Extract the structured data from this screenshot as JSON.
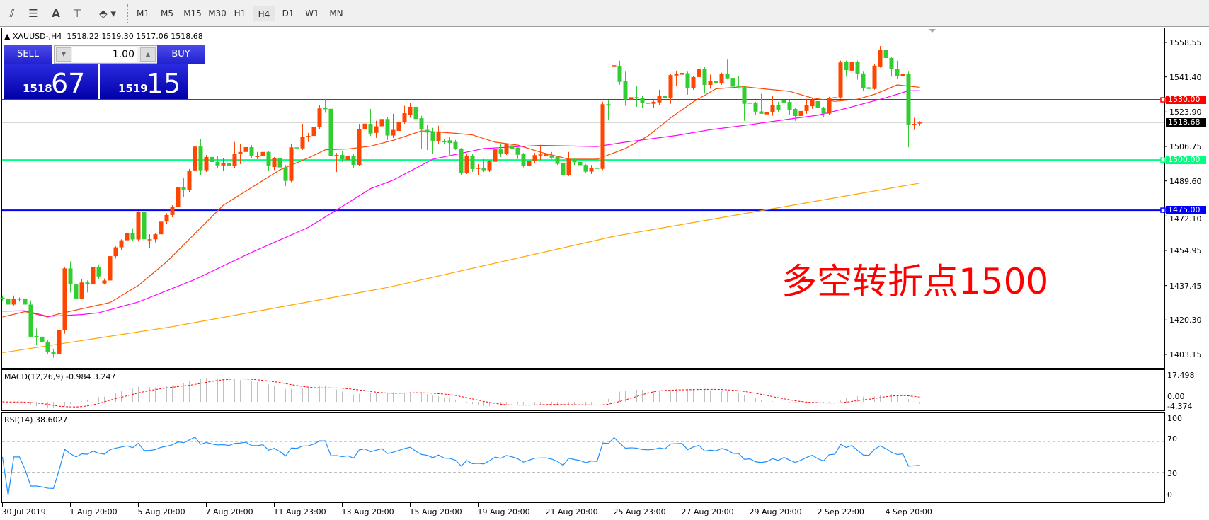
{
  "toolbar": {
    "icons": [
      "elliott-wave-icon",
      "fibonacci-icon",
      "text-icon",
      "text-label-icon",
      "arrows-icon"
    ],
    "timeframes": [
      "M1",
      "M5",
      "M15",
      "M30",
      "H1",
      "H4",
      "D1",
      "W1",
      "MN"
    ],
    "active_timeframe": "H4"
  },
  "header": {
    "symbol": "XAUUSD-,H4",
    "ohlc_text": "1518.22 1519.30 1517.06 1518.68"
  },
  "trade_panel": {
    "sell_label": "SELL",
    "buy_label": "BUY",
    "lot": "1.00",
    "sell_big": "1518",
    "sell_small": "67",
    "buy_big": "1519",
    "buy_small": "15",
    "color": "#1c1cd8"
  },
  "annotation": {
    "text": "多空转折点1500",
    "color": "#ff0000"
  },
  "macd": {
    "label": "MACD(12,26,9) -0.984 3.247",
    "ticks": [
      "17.498",
      "0.00",
      "-4.374"
    ],
    "range": [
      -4.374,
      17.498
    ]
  },
  "rsi": {
    "label": "RSI(14) 38.6027",
    "ticks": [
      "100",
      "70",
      "30",
      "0"
    ],
    "levels": [
      70,
      30
    ]
  },
  "chart_data": {
    "type": "candlestick",
    "symbol": "XAUUSD-",
    "timeframe": "H4",
    "ylim": [
      1403.15,
      1558.55
    ],
    "price_ticks": [
      "1558.55",
      "1541.40",
      "1523.90",
      "1506.75",
      "1489.60",
      "1472.10",
      "1454.95",
      "1437.45",
      "1420.30",
      "1403.15"
    ],
    "time_labels": [
      "30 Jul 2019",
      "1 Aug 20:00",
      "5 Aug 20:00",
      "7 Aug 20:00",
      "11 Aug 23:00",
      "13 Aug 20:00",
      "15 Aug 20:00",
      "19 Aug 20:00",
      "21 Aug 20:00",
      "25 Aug 23:00",
      "27 Aug 20:00",
      "29 Aug 20:00",
      "2 Sep 22:00",
      "4 Sep 20:00"
    ],
    "bars_per_time_label": 12,
    "colors": {
      "up": "#ff4500",
      "down": "#32cd32"
    },
    "horizontal_lines": [
      {
        "price": 1530.0,
        "label": "1530.00",
        "color": "#ff0000"
      },
      {
        "price": 1500.0,
        "label": "1500.00",
        "color": "#00ff7f"
      },
      {
        "price": 1475.0,
        "label": "1475.00",
        "color": "#0000ff"
      }
    ],
    "bid_line": {
      "price": 1518.68,
      "label": "1518.68",
      "color": "#c0c0c0"
    },
    "ohlc": [
      [
        1431.5,
        1432.5,
        1430,
        1431
      ],
      [
        1431,
        1433,
        1427.5,
        1428
      ],
      [
        1428,
        1432.5,
        1427.5,
        1431
      ],
      [
        1430.5,
        1431.5,
        1429.5,
        1431
      ],
      [
        1431,
        1434,
        1426.5,
        1428
      ],
      [
        1428,
        1430,
        1411.5,
        1412
      ],
      [
        1412.3,
        1416,
        1408,
        1412
      ],
      [
        1412,
        1413,
        1406,
        1409.5
      ],
      [
        1409.5,
        1410.5,
        1403.5,
        1404.3
      ],
      [
        1404.3,
        1406,
        1401.5,
        1403.2
      ],
      [
        1403.2,
        1418,
        1400.5,
        1415.2
      ],
      [
        1415.2,
        1446.5,
        1413.5,
        1446
      ],
      [
        1446,
        1449.5,
        1434,
        1438
      ],
      [
        1438,
        1440,
        1430,
        1431
      ],
      [
        1431,
        1440.5,
        1430.5,
        1439
      ],
      [
        1439,
        1440,
        1434,
        1438
      ],
      [
        1438,
        1448,
        1430.5,
        1446.5
      ],
      [
        1446.5,
        1448,
        1440.5,
        1442
      ],
      [
        1438.5,
        1441,
        1438,
        1440
      ],
      [
        1440,
        1453.5,
        1439.5,
        1452.1
      ],
      [
        1452.1,
        1457,
        1451,
        1456.5
      ],
      [
        1456.5,
        1460.5,
        1455,
        1460
      ],
      [
        1460,
        1466,
        1454,
        1463.4
      ],
      [
        1463.4,
        1466,
        1459.5,
        1460.4
      ],
      [
        1460.4,
        1474.5,
        1459.5,
        1474
      ],
      [
        1474,
        1474.5,
        1459.5,
        1460.5
      ],
      [
        1460.5,
        1463,
        1456,
        1460.5
      ],
      [
        1460.5,
        1463.5,
        1459,
        1463
      ],
      [
        1463,
        1471,
        1462,
        1469.3
      ],
      [
        1469.3,
        1473.5,
        1468,
        1472.6
      ],
      [
        1472.6,
        1477.5,
        1471.5,
        1476.8
      ],
      [
        1476.8,
        1490.5,
        1475.5,
        1486.3
      ],
      [
        1486.3,
        1491,
        1481.5,
        1485
      ],
      [
        1485,
        1495.5,
        1484,
        1494.8
      ],
      [
        1494.8,
        1510.5,
        1491.5,
        1506.7
      ],
      [
        1506.7,
        1510.5,
        1492.5,
        1494.9
      ],
      [
        1494.9,
        1502.5,
        1494,
        1501.5
      ],
      [
        1501.5,
        1505,
        1492,
        1499
      ],
      [
        1499,
        1502,
        1496,
        1497.3
      ],
      [
        1497.3,
        1501,
        1494.5,
        1498.3
      ],
      [
        1498.3,
        1499,
        1489,
        1497
      ],
      [
        1497,
        1509,
        1496,
        1503.1
      ],
      [
        1503,
        1508,
        1498,
        1504
      ],
      [
        1504,
        1509,
        1497.5,
        1506.4
      ],
      [
        1506.4,
        1507.5,
        1501,
        1502
      ],
      [
        1502,
        1504,
        1500.5,
        1502
      ],
      [
        1502,
        1505,
        1495,
        1504
      ],
      [
        1504,
        1504.5,
        1494.5,
        1497
      ],
      [
        1496.5,
        1501.5,
        1495,
        1500.8
      ],
      [
        1500.8,
        1501.5,
        1494.5,
        1496.3
      ],
      [
        1496.3,
        1497.5,
        1487,
        1489.6
      ],
      [
        1489.6,
        1508,
        1489,
        1506.3
      ],
      [
        1506.3,
        1507,
        1501,
        1505.8
      ],
      [
        1505.8,
        1518,
        1505,
        1511.6
      ],
      [
        1511.6,
        1513.5,
        1509,
        1512
      ],
      [
        1512,
        1518.5,
        1510,
        1516.6
      ],
      [
        1516.6,
        1527.5,
        1515.5,
        1525.7
      ],
      [
        1525.8,
        1530.5,
        1523.5,
        1525.7
      ],
      [
        1525.5,
        1526,
        1480,
        1502
      ],
      [
        1502,
        1503.5,
        1494,
        1502.5
      ],
      [
        1502.5,
        1504.5,
        1499,
        1500.3
      ],
      [
        1500,
        1504,
        1494.5,
        1502
      ],
      [
        1502,
        1503,
        1496,
        1497.6
      ],
      [
        1497.6,
        1518,
        1497,
        1515.4
      ],
      [
        1515.4,
        1520,
        1514,
        1518.1
      ],
      [
        1518,
        1525.5,
        1512,
        1513.2
      ],
      [
        1513.5,
        1519.5,
        1511,
        1516.8
      ],
      [
        1516.8,
        1523,
        1515,
        1520.4
      ],
      [
        1520.4,
        1521.5,
        1510,
        1512.2
      ],
      [
        1512.2,
        1523,
        1511,
        1515
      ],
      [
        1514.5,
        1520,
        1512,
        1519.1
      ],
      [
        1519,
        1527,
        1518,
        1523.3
      ],
      [
        1522.6,
        1528.5,
        1521,
        1526.5
      ],
      [
        1526.5,
        1528,
        1516,
        1520.4
      ],
      [
        1520.8,
        1522,
        1505.5,
        1515.1
      ],
      [
        1515,
        1517.5,
        1505,
        1513.7
      ],
      [
        1514.2,
        1516,
        1503,
        1509.6
      ],
      [
        1509.2,
        1517,
        1508,
        1514.2
      ],
      [
        1509.4,
        1510.5,
        1508,
        1509
      ],
      [
        1509.8,
        1511.5,
        1502.5,
        1508.5
      ],
      [
        1509,
        1510,
        1505,
        1505.4
      ],
      [
        1505.7,
        1506,
        1492.5,
        1493.7
      ],
      [
        1493.7,
        1503,
        1493,
        1502.2
      ],
      [
        1502.2,
        1503,
        1494,
        1495.5
      ],
      [
        1496.1,
        1498,
        1492.5,
        1496.1
      ],
      [
        1496.1,
        1500.5,
        1494,
        1494.9
      ],
      [
        1494.9,
        1500,
        1494,
        1499.5
      ],
      [
        1499.1,
        1507,
        1498.5,
        1505.3
      ],
      [
        1505.3,
        1508,
        1501.5,
        1503.2
      ],
      [
        1502.9,
        1508,
        1502.5,
        1507.8
      ],
      [
        1507.3,
        1508,
        1504.5,
        1505.7
      ],
      [
        1506.2,
        1507.5,
        1500.5,
        1502.6
      ],
      [
        1502.9,
        1503.5,
        1496.3,
        1496.9
      ],
      [
        1496.9,
        1502,
        1496,
        1499.6
      ],
      [
        1499.6,
        1503.5,
        1498.5,
        1502.4
      ],
      [
        1502.8,
        1507.5,
        1500,
        1502.8
      ],
      [
        1502.2,
        1504,
        1501.5,
        1502.9
      ],
      [
        1502.4,
        1504,
        1500.5,
        1501.2
      ],
      [
        1501.6,
        1502,
        1497.5,
        1498.1
      ],
      [
        1498.3,
        1499.5,
        1491.5,
        1492.3
      ],
      [
        1492.3,
        1504,
        1492,
        1500.6
      ],
      [
        1500.6,
        1501,
        1497.5,
        1498.9
      ],
      [
        1499,
        1500,
        1496,
        1497.4
      ],
      [
        1497.5,
        1498,
        1493.5,
        1494.2
      ],
      [
        1494.2,
        1497.5,
        1493,
        1496.1
      ],
      [
        1496.1,
        1497.5,
        1494.5,
        1495.6
      ],
      [
        1495.6,
        1529,
        1495,
        1527.8
      ],
      [
        1527.8,
        1530,
        1520,
        1527.1
      ],
      [
        1547.2,
        1550,
        1543.5,
        1547.2
      ],
      [
        1546.9,
        1549.5,
        1537.5,
        1538.9
      ],
      [
        1539.2,
        1544,
        1527,
        1530.1
      ],
      [
        1530.1,
        1533,
        1525,
        1531.3
      ],
      [
        1531.3,
        1537,
        1526.5,
        1530.7
      ],
      [
        1530.9,
        1532,
        1526,
        1528.4
      ],
      [
        1528.6,
        1530,
        1527,
        1528
      ],
      [
        1528,
        1529.5,
        1526,
        1529
      ],
      [
        1528.7,
        1535,
        1527.5,
        1532.1
      ],
      [
        1532.1,
        1533,
        1529.5,
        1530.7
      ],
      [
        1530.7,
        1542.8,
        1528,
        1542.3
      ],
      [
        1542.1,
        1544.5,
        1537,
        1542.8
      ],
      [
        1542.5,
        1544,
        1540.5,
        1543.4
      ],
      [
        1543.2,
        1544,
        1532.5,
        1535.7
      ],
      [
        1535.7,
        1542,
        1535,
        1541.3
      ],
      [
        1541.3,
        1546,
        1539,
        1545.2
      ],
      [
        1545.2,
        1546.5,
        1533,
        1537.4
      ],
      [
        1537.4,
        1542.5,
        1535.5,
        1539.2
      ],
      [
        1539.2,
        1540.5,
        1537.5,
        1538.2
      ],
      [
        1538.2,
        1543.5,
        1537.5,
        1542.8
      ],
      [
        1542.8,
        1550,
        1540.5,
        1540.7
      ],
      [
        1540.9,
        1542,
        1533,
        1536.5
      ],
      [
        1536.7,
        1542,
        1535.5,
        1536.2
      ],
      [
        1536.2,
        1537,
        1519.5,
        1528
      ],
      [
        1528.6,
        1530,
        1526,
        1528.6
      ],
      [
        1528.6,
        1529,
        1522.5,
        1524.1
      ],
      [
        1524.2,
        1533,
        1523,
        1523
      ],
      [
        1522.7,
        1526,
        1521,
        1524
      ],
      [
        1523.8,
        1532,
        1522,
        1527.5
      ],
      [
        1527.5,
        1529,
        1524,
        1525.1
      ],
      [
        1529.8,
        1531,
        1527.5,
        1528.6
      ],
      [
        1528.9,
        1530,
        1522.5,
        1525.1
      ],
      [
        1525.4,
        1526,
        1519.5,
        1521.9
      ],
      [
        1521.9,
        1526,
        1520.5,
        1524.4
      ],
      [
        1524.4,
        1530.5,
        1523,
        1527.5
      ],
      [
        1526.8,
        1531,
        1525.5,
        1530.1
      ],
      [
        1529.3,
        1530,
        1525,
        1525.9
      ],
      [
        1525.9,
        1526.5,
        1521.5,
        1523.1
      ],
      [
        1523.1,
        1531.5,
        1522.5,
        1530.7
      ],
      [
        1530.7,
        1534.5,
        1529.5,
        1531.3
      ],
      [
        1531.2,
        1549.5,
        1530.5,
        1548.6
      ],
      [
        1548.7,
        1549.5,
        1541.5,
        1544.8
      ],
      [
        1544.5,
        1549.5,
        1544,
        1549
      ],
      [
        1549,
        1549.5,
        1540,
        1542.7
      ],
      [
        1543.1,
        1544,
        1534.5,
        1536
      ],
      [
        1536.2,
        1539,
        1533.5,
        1535.4
      ],
      [
        1535.4,
        1548,
        1535,
        1547
      ],
      [
        1546.6,
        1556.8,
        1546,
        1554.7
      ],
      [
        1555,
        1555.5,
        1550,
        1550.8
      ],
      [
        1550.8,
        1551.5,
        1541.5,
        1545.3
      ],
      [
        1545.5,
        1549.5,
        1540.5,
        1541.7
      ],
      [
        1541.7,
        1543.2,
        1538.5,
        1542.7
      ],
      [
        1542.7,
        1544,
        1506.3,
        1517.4
      ],
      [
        1517.4,
        1521,
        1515,
        1518
      ],
      [
        1518.22,
        1519.3,
        1517.06,
        1518.68
      ]
    ],
    "moving_averages": [
      {
        "color": "#ff4500",
        "points": [
          [
            0,
            1421.8
          ],
          [
            4,
            1424.5
          ],
          [
            8,
            1421.8
          ],
          [
            10,
            1423.4
          ],
          [
            19,
            1429
          ],
          [
            24,
            1437.5
          ],
          [
            29,
            1449.3
          ],
          [
            34,
            1463.4
          ],
          [
            39,
            1477.5
          ],
          [
            44,
            1486.3
          ],
          [
            49,
            1495.1
          ],
          [
            54,
            1501
          ],
          [
            57,
            1505.1
          ],
          [
            61,
            1505.5
          ],
          [
            65,
            1506.9
          ],
          [
            69,
            1509.8
          ],
          [
            74,
            1514.5
          ],
          [
            80,
            1513.3
          ],
          [
            83,
            1512.5
          ],
          [
            87,
            1508.9
          ],
          [
            91,
            1507.4
          ],
          [
            95,
            1503.9
          ],
          [
            100,
            1500.4
          ],
          [
            105,
            1500.4
          ],
          [
            110,
            1505.7
          ],
          [
            114,
            1512
          ],
          [
            118,
            1521
          ],
          [
            122,
            1529
          ],
          [
            126,
            1535.5
          ],
          [
            131,
            1536.5
          ],
          [
            135,
            1535.3
          ],
          [
            139,
            1534.2
          ],
          [
            143,
            1530.9
          ],
          [
            147,
            1529.2
          ],
          [
            151,
            1530.3
          ],
          [
            154,
            1532.7
          ],
          [
            158,
            1537.4
          ],
          [
            162,
            1536.2
          ]
        ]
      },
      {
        "color": "#ff00ff",
        "points": [
          [
            0,
            1424.7
          ],
          [
            4,
            1424.9
          ],
          [
            8,
            1422.1
          ],
          [
            14,
            1423
          ],
          [
            17,
            1423.9
          ],
          [
            24,
            1429.3
          ],
          [
            34,
            1440.5
          ],
          [
            44,
            1454
          ],
          [
            54,
            1466.4
          ],
          [
            59,
            1475.1
          ],
          [
            65,
            1485.7
          ],
          [
            69,
            1490
          ],
          [
            76,
            1500.4
          ],
          [
            85,
            1505.7
          ],
          [
            95,
            1507.3
          ],
          [
            105,
            1506.7
          ],
          [
            110,
            1508.9
          ],
          [
            119,
            1512.2
          ],
          [
            125,
            1515.1
          ],
          [
            132,
            1517.6
          ],
          [
            139,
            1520.4
          ],
          [
            144,
            1522.3
          ],
          [
            149,
            1525.7
          ],
          [
            152,
            1528
          ],
          [
            156,
            1531
          ],
          [
            160,
            1534.5
          ],
          [
            162,
            1534.5
          ]
        ]
      },
      {
        "color": "#ffa500",
        "points": [
          [
            0,
            1404
          ],
          [
            30,
            1417
          ],
          [
            68,
            1436.5
          ],
          [
            108,
            1462
          ],
          [
            162,
            1488.5
          ]
        ]
      }
    ]
  }
}
